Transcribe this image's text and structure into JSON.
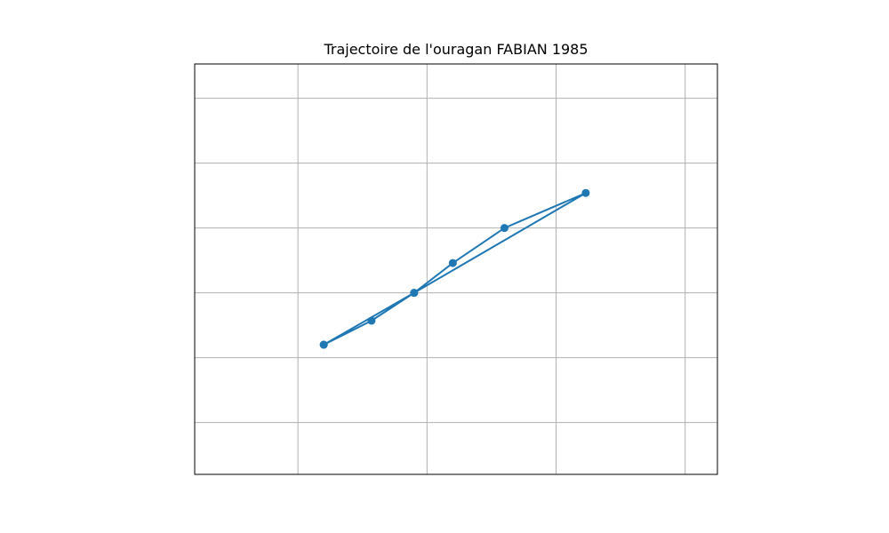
{
  "chart_data": {
    "type": "line",
    "title": "Trajectoire de l'ouragan FABIAN 1985",
    "xlabel": "",
    "ylabel": "",
    "x_ticks_labeled": false,
    "y_ticks_labeled": false,
    "grid": true,
    "legend": "none",
    "xlim": [
      -0.8,
      3.25
    ],
    "ylim": [
      -0.8,
      5.53
    ],
    "x_gridlines": [
      0,
      1,
      2,
      3
    ],
    "y_gridlines": [
      0,
      1,
      2,
      3,
      4,
      5
    ],
    "series": [
      {
        "color": "#1f77b4",
        "marker": "circle",
        "x": [
          0.2,
          0.57,
          0.9,
          1.2,
          1.6,
          2.23,
          0.9,
          0.2
        ],
        "y": [
          1.2,
          1.57,
          2.0,
          2.46,
          3.0,
          3.54,
          2.0,
          1.2
        ]
      }
    ]
  }
}
